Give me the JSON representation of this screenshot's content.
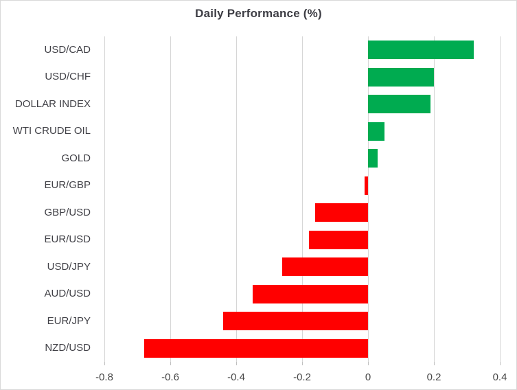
{
  "chart_data": {
    "type": "bar",
    "orientation": "horizontal",
    "title": "Daily Performance (%)",
    "categories": [
      "USD/CAD",
      "USD/CHF",
      "DOLLAR INDEX",
      "WTI CRUDE OIL",
      "GOLD",
      "EUR/GBP",
      "GBP/USD",
      "EUR/USD",
      "USD/JPY",
      "AUD/USD",
      "EUR/JPY",
      "NZD/USD"
    ],
    "values": [
      0.32,
      0.2,
      0.19,
      0.05,
      0.03,
      -0.01,
      -0.16,
      -0.18,
      -0.26,
      -0.35,
      -0.44,
      -0.68
    ],
    "xlim": [
      -0.8,
      0.4
    ],
    "xticks": [
      -0.8,
      -0.6,
      -0.4,
      -0.2,
      0,
      0.2,
      0.4
    ],
    "xtick_labels": [
      "-0.8",
      "-0.6",
      "-0.4",
      "-0.2",
      "0",
      "0.2",
      "0.4"
    ],
    "positive_color": "#00ab50",
    "negative_color": "#ff0000",
    "grid": true,
    "legend": false,
    "gridline_color": "#d6d6d6"
  }
}
